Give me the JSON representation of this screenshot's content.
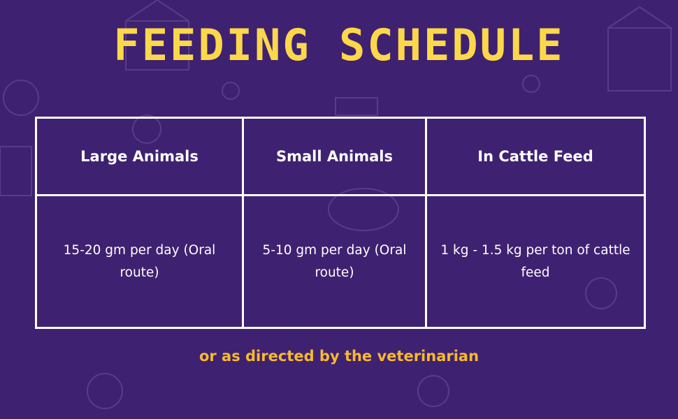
{
  "title": "FEEDING SCHEDULE",
  "table": {
    "headers": [
      "Large Animals",
      "Small Animals",
      "In Cattle Feed"
    ],
    "rows": [
      [
        "15-20 gm per day (Oral route)",
        "5-10 gm per day (Oral route)",
        "1 kg - 1.5 kg per ton of cattle feed"
      ]
    ]
  },
  "footer": "or as directed by the veterinarian",
  "colors": {
    "background": "#3f2171",
    "title": "#fbd84a",
    "footer": "#f7b930"
  }
}
